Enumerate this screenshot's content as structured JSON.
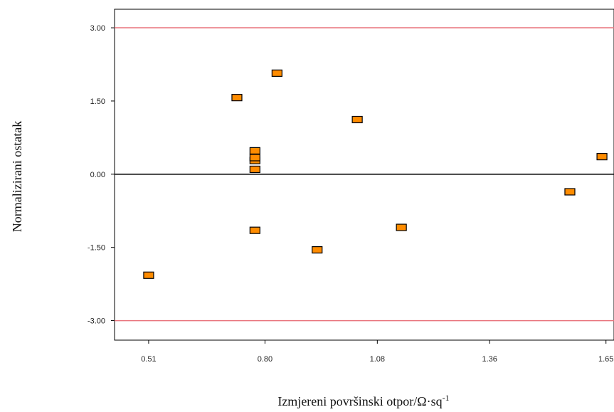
{
  "chart_data": {
    "type": "scatter",
    "xlabel_main": "Izmjereni  površinski otpor/Ω·sq",
    "xlabel_sup": "-1",
    "ylabel": "Normalizirani  ostatak",
    "xlim": [
      0.425,
      1.67
    ],
    "ylim": [
      -3.4,
      3.38
    ],
    "xticks": [
      0.51,
      0.8,
      1.08,
      1.36,
      1.65
    ],
    "xtick_labels": [
      "0.51",
      "0.80",
      "1.08",
      "1.36",
      "1.65"
    ],
    "yticks": [
      3.0,
      1.5,
      0.0,
      -1.5,
      -3.0
    ],
    "ytick_labels": [
      "3.00",
      "1.50",
      "0.00",
      "-1.50",
      "-3.00"
    ],
    "reference_lines": [
      {
        "y": 3.0,
        "color": "#e8747c"
      },
      {
        "y": 0.0,
        "color": "#000000"
      },
      {
        "y": -3.0,
        "color": "#e8747c"
      }
    ],
    "points": [
      {
        "x": 0.51,
        "y": -2.07
      },
      {
        "x": 0.73,
        "y": 1.57
      },
      {
        "x": 0.775,
        "y": 0.48
      },
      {
        "x": 0.775,
        "y": 0.28
      },
      {
        "x": 0.775,
        "y": 0.1
      },
      {
        "x": 0.775,
        "y": 0.34
      },
      {
        "x": 0.775,
        "y": -1.15
      },
      {
        "x": 0.83,
        "y": 2.07
      },
      {
        "x": 0.93,
        "y": -1.55
      },
      {
        "x": 1.03,
        "y": 1.12
      },
      {
        "x": 1.14,
        "y": -1.09
      },
      {
        "x": 1.56,
        "y": -0.36
      },
      {
        "x": 1.64,
        "y": 0.36
      }
    ],
    "marker_color": "#ff8c00",
    "marker_edge": "#000000",
    "grid": false,
    "legend": "none"
  }
}
